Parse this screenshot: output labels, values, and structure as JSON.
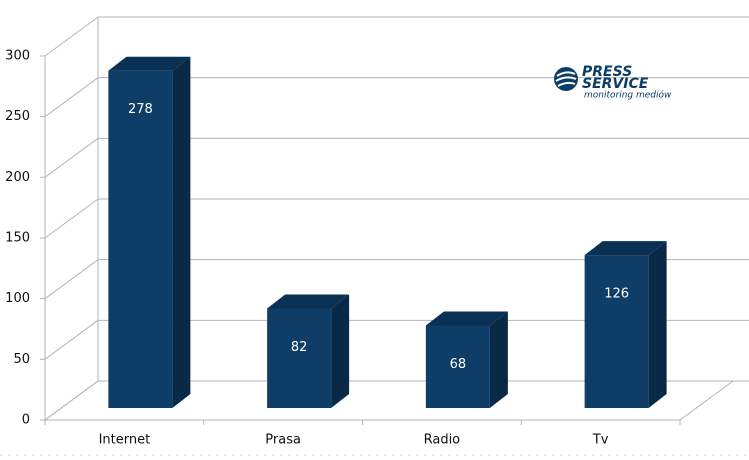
{
  "chart_data": {
    "type": "bar3d",
    "categories": [
      "Internet",
      "Prasa",
      "Radio",
      "Tv"
    ],
    "values": [
      278,
      82,
      68,
      126
    ],
    "color": "#0e3d68",
    "ylim": [
      0,
      300
    ],
    "yticks": [
      0,
      50,
      100,
      150,
      200,
      250,
      300
    ],
    "grid": true,
    "logo": {
      "line1": "PRESS",
      "line2": "SERVICE",
      "tagline": "monitoring mediów"
    }
  }
}
